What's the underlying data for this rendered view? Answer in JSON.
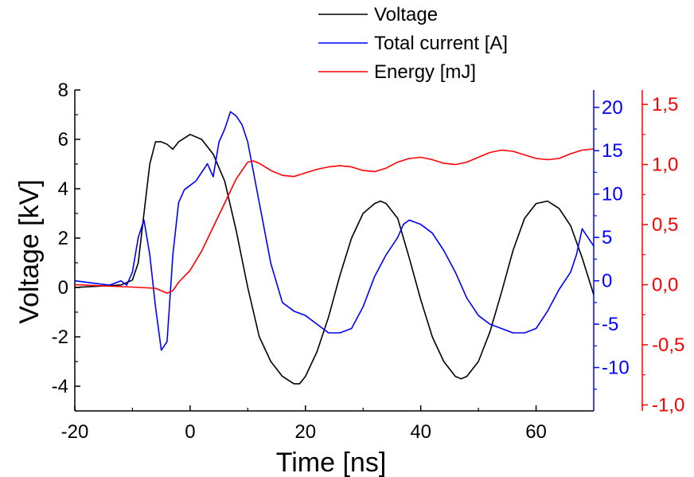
{
  "chart_data": {
    "type": "line",
    "xlabel": "Time [ns]",
    "xlim": [
      -20,
      70
    ],
    "x_ticks": [
      -20,
      0,
      20,
      40,
      60
    ],
    "x_tick_labels": [
      "-20",
      "0",
      "20",
      "40",
      "60"
    ],
    "y_axes": [
      {
        "id": "voltage",
        "label": "Voltage [kV]",
        "lim": [
          -5,
          8
        ],
        "ticks": [
          -4,
          -2,
          0,
          2,
          4,
          6,
          8
        ],
        "tick_labels": [
          "-4",
          "-2",
          "0",
          "2",
          "4",
          "6",
          "8"
        ],
        "color": "#000000",
        "side": "left"
      },
      {
        "id": "current",
        "label": "",
        "lim": [
          -15,
          22
        ],
        "ticks": [
          -10,
          -5,
          0,
          5,
          10,
          15,
          20
        ],
        "tick_labels": [
          "-10",
          "-5",
          "0",
          "5",
          "10",
          "15",
          "20"
        ],
        "color": "#0000ff",
        "side": "right"
      },
      {
        "id": "energy",
        "label": "",
        "lim": [
          -1.05,
          1.62
        ],
        "ticks": [
          -1.0,
          -0.5,
          0.0,
          0.5,
          1.0,
          1.5
        ],
        "tick_labels": [
          "-1,0",
          "-0,5",
          "0,0",
          "0,5",
          "1,0",
          "1,5"
        ],
        "color": "#ff0000",
        "side": "right-offset"
      }
    ],
    "legend": {
      "position": "top",
      "entries": [
        "Voltage",
        "Total current [A]",
        "Energy [mJ]"
      ]
    },
    "grid": false,
    "series": [
      {
        "name": "Voltage",
        "axis": "voltage",
        "color": "#000000",
        "x": [
          -20,
          -12,
          -10,
          -9,
          -8,
          -7,
          -6,
          -5,
          -4,
          -3,
          -2,
          0,
          2,
          4,
          6,
          8,
          10,
          12,
          14,
          16,
          18,
          19,
          20,
          22,
          24,
          26,
          28,
          30,
          32,
          33,
          34,
          36,
          38,
          40,
          42,
          44,
          46,
          47,
          48,
          50,
          52,
          54,
          56,
          58,
          60,
          62,
          64,
          66,
          68,
          70
        ],
        "y": [
          0,
          0.1,
          0.3,
          1.0,
          3.0,
          5.0,
          5.9,
          5.9,
          5.8,
          5.6,
          5.9,
          6.2,
          6.0,
          5.4,
          4.3,
          2.3,
          0,
          -2.0,
          -3.0,
          -3.6,
          -3.9,
          -3.9,
          -3.6,
          -2.6,
          -1.2,
          0.5,
          2.0,
          3.0,
          3.4,
          3.5,
          3.4,
          2.8,
          1.2,
          -0.5,
          -2.0,
          -3.0,
          -3.6,
          -3.7,
          -3.6,
          -3.0,
          -1.8,
          -0.2,
          1.5,
          2.8,
          3.4,
          3.5,
          3.2,
          2.5,
          1.2,
          -0.3
        ]
      },
      {
        "name": "Total current [A]",
        "axis": "current",
        "color": "#0000ff",
        "x": [
          -20,
          -14,
          -12,
          -11,
          -10,
          -9,
          -8,
          -7,
          -6,
          -5,
          -4,
          -3,
          -2,
          -1,
          0,
          1,
          2,
          3,
          4,
          5,
          6,
          7,
          8,
          9,
          10,
          12,
          14,
          16,
          18,
          20,
          22,
          24,
          26,
          28,
          30,
          32,
          34,
          36,
          37,
          38,
          40,
          42,
          44,
          46,
          48,
          50,
          52,
          54,
          56,
          58,
          60,
          62,
          64,
          66,
          67,
          68,
          70
        ],
        "y": [
          0,
          -0.5,
          0,
          -0.5,
          1.0,
          5.0,
          7.0,
          3.0,
          -3.0,
          -8.0,
          -7.0,
          3.0,
          9.0,
          10.5,
          11.0,
          11.5,
          12.5,
          13.5,
          12.0,
          16.0,
          17.5,
          19.5,
          19.0,
          18.0,
          16.0,
          9.0,
          2.0,
          -2.5,
          -3.5,
          -4.0,
          -5.0,
          -6.0,
          -6.0,
          -5.5,
          -3.0,
          0.5,
          3.0,
          5.0,
          6.5,
          7.0,
          6.5,
          5.5,
          3.5,
          1.0,
          -2.0,
          -4.0,
          -5.0,
          -5.5,
          -6.0,
          -6.0,
          -5.5,
          -3.5,
          -1.0,
          1.0,
          3.0,
          6.0,
          4.0
        ]
      },
      {
        "name": "Energy [mJ]",
        "axis": "energy",
        "color": "#ff0000",
        "x": [
          -20,
          -10,
          -6,
          -4,
          -3,
          -2,
          0,
          2,
          4,
          6,
          8,
          10,
          11,
          12,
          14,
          16,
          18,
          20,
          22,
          24,
          26,
          28,
          30,
          32,
          34,
          36,
          38,
          40,
          42,
          44,
          46,
          48,
          50,
          52,
          54,
          56,
          58,
          60,
          62,
          64,
          66,
          68,
          70
        ],
        "y": [
          0,
          -0.02,
          -0.03,
          -0.07,
          -0.05,
          0.02,
          0.12,
          0.28,
          0.48,
          0.68,
          0.88,
          1.02,
          1.03,
          1.01,
          0.95,
          0.91,
          0.9,
          0.93,
          0.96,
          0.98,
          0.99,
          0.98,
          0.95,
          0.94,
          0.97,
          1.02,
          1.05,
          1.06,
          1.04,
          1.01,
          1.0,
          1.02,
          1.06,
          1.1,
          1.12,
          1.11,
          1.08,
          1.05,
          1.04,
          1.05,
          1.09,
          1.12,
          1.13
        ]
      }
    ]
  }
}
